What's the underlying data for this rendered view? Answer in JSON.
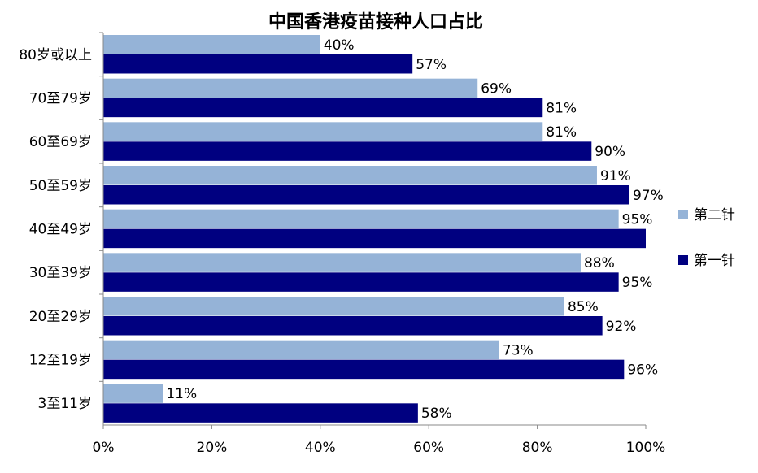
{
  "chart_data": {
    "type": "bar",
    "orientation": "horizontal",
    "title": "中国香港疫苗接种人口占比",
    "categories": [
      "80岁或以上",
      "70至79岁",
      "60至69岁",
      "50至59岁",
      "40至49岁",
      "30至39岁",
      "20至29岁",
      "12至19岁",
      "3至11岁"
    ],
    "series": [
      {
        "name": "第二针",
        "color": "#95B3D7",
        "values": [
          40,
          69,
          81,
          91,
          95,
          88,
          85,
          73,
          11
        ],
        "labels": [
          "40%",
          "69%",
          "81%",
          "91%",
          "95%",
          "88%",
          "85%",
          "73%",
          "11%"
        ]
      },
      {
        "name": "第一针",
        "color": "#000080",
        "values": [
          57,
          81,
          90,
          97,
          100,
          95,
          92,
          96,
          58
        ],
        "labels": [
          "57%",
          "81%",
          "90%",
          "97%",
          "",
          "95%",
          "92%",
          "96%",
          "58%"
        ]
      }
    ],
    "xlim": [
      0,
      100
    ],
    "xticks": [
      "0%",
      "20%",
      "40%",
      "60%",
      "80%",
      "100%"
    ],
    "grid": false,
    "legend_position": "right"
  }
}
